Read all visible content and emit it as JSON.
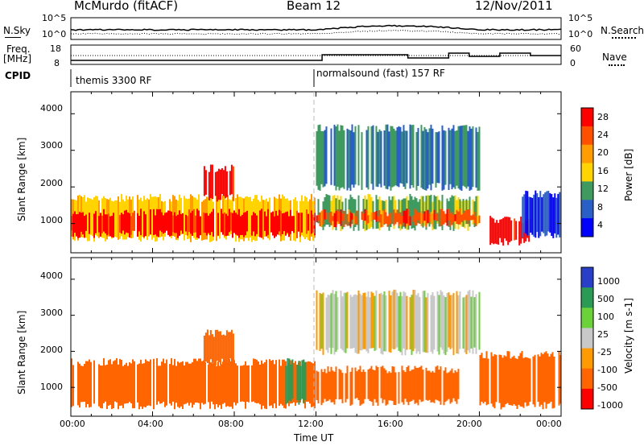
{
  "header": {
    "station": "McMurdo (fitACF)",
    "beam": "Beam 12",
    "date": "12/Nov/2011"
  },
  "noise_panel": {
    "left_label": "N.Sky",
    "left_ticks": [
      "10^5",
      "10^0"
    ],
    "right_label": "N.Search",
    "right_ticks": [
      "10^5",
      "10^0"
    ]
  },
  "freq_panel": {
    "left_label_1": "Freq.",
    "left_label_2": "[MHz]",
    "left_ticks": [
      "18",
      "8"
    ],
    "right_label": "Nave",
    "right_ticks": [
      "60",
      "0"
    ]
  },
  "cpid": {
    "label": "CPID",
    "segments": [
      {
        "text": "themis 3300 RF",
        "start_hour": 0
      },
      {
        "text": "normalsound (fast) 157 RF",
        "start_hour": 12
      }
    ]
  },
  "x_axis": {
    "title": "Time UT",
    "ticks": [
      "00:00",
      "04:00",
      "08:00",
      "12:00",
      "16:00",
      "20:00",
      "00:00"
    ]
  },
  "colors": {
    "power": [
      "#0000ff",
      "#2a5fc8",
      "#3e9a5e",
      "#ffd400",
      "#ff9c00",
      "#ff5000",
      "#ff0000"
    ],
    "velocity": [
      "#2a3fc8",
      "#2b9a55",
      "#6cd23a",
      "#c8c8c8",
      "#ff9a00",
      "#ff6500",
      "#ff0000"
    ]
  },
  "chart_data": [
    {
      "type": "heatmap",
      "ylabel": "Slant Range [km]",
      "xlabel": "",
      "xlim": [
        0,
        24
      ],
      "ylim": [
        200,
        4600
      ],
      "y_ticks": [
        1000,
        2000,
        3000,
        4000
      ],
      "colorbar": {
        "label": "Power [dB]",
        "ticks": [
          "4",
          "8",
          "12",
          "16",
          "20",
          "24",
          "28"
        ],
        "range": [
          0,
          30
        ]
      },
      "echo_regions": [
        {
          "t": [
            0.0,
            12.0
          ],
          "r": [
            600,
            1700
          ],
          "level": 16
        },
        {
          "t": [
            0.0,
            12.0
          ],
          "r": [
            700,
            1300
          ],
          "level": 28
        },
        {
          "t": [
            6.5,
            8.0
          ],
          "r": [
            1700,
            2500
          ],
          "level": 28
        },
        {
          "t": [
            12.0,
            20.0
          ],
          "r": [
            900,
            1700
          ],
          "level": 12
        },
        {
          "t": [
            12.0,
            20.0
          ],
          "r": [
            1000,
            1300
          ],
          "level": 24
        },
        {
          "t": [
            12.0,
            20.0
          ],
          "r": [
            2000,
            3600
          ],
          "level": 8
        },
        {
          "t": [
            20.5,
            22.5
          ],
          "r": [
            500,
            1100
          ],
          "level": 28
        },
        {
          "t": [
            22.0,
            24.0
          ],
          "r": [
            700,
            1800
          ],
          "level": 4
        }
      ]
    },
    {
      "type": "heatmap",
      "ylabel": "Slant Range [km]",
      "xlabel": "Time UT",
      "xlim": [
        0,
        24
      ],
      "ylim": [
        200,
        4600
      ],
      "y_ticks": [
        1000,
        2000,
        3000,
        4000
      ],
      "colorbar": {
        "label": "Velocity [m s-1]",
        "ticks": [
          "1000",
          "500",
          "100",
          "25",
          "-25",
          "-100",
          "-500",
          "-1000"
        ],
        "range": [
          -1000,
          1000
        ]
      },
      "echo_regions": [
        {
          "t": [
            0.0,
            12.0
          ],
          "r": [
            500,
            1700
          ],
          "level": -300
        },
        {
          "t": [
            6.5,
            8.0
          ],
          "r": [
            1700,
            2500
          ],
          "level": -300
        },
        {
          "t": [
            10.5,
            11.5
          ],
          "r": [
            600,
            1700
          ],
          "level": 300
        },
        {
          "t": [
            12.0,
            19.0
          ],
          "r": [
            600,
            1500
          ],
          "level": -300
        },
        {
          "t": [
            12.0,
            20.0
          ],
          "r": [
            2000,
            3600
          ],
          "level": 0
        },
        {
          "t": [
            20.0,
            24.0
          ],
          "r": [
            500,
            1900
          ],
          "level": -300
        }
      ]
    }
  ]
}
